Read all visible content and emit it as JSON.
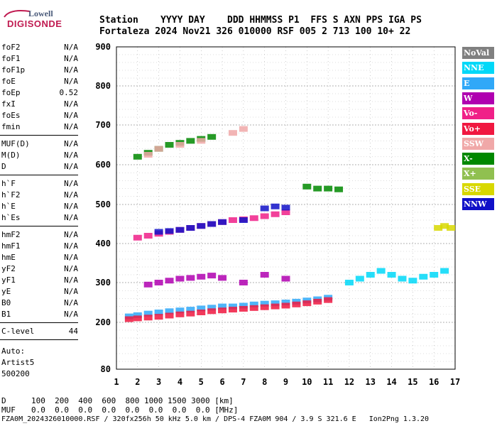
{
  "logo": {
    "line1": "Lowell",
    "line2": "DIGISONDE"
  },
  "header": {
    "row1": "Station    YYYY DAY    DDD HHMMSS P1  FFS S AXN PPS IGA PS",
    "row2": "Fortaleza 2024 Nov21 326 010000 RSF 005 2 713 100 10+ 22"
  },
  "params_group1": [
    {
      "name": "foF2",
      "value": "N/A"
    },
    {
      "name": "foF1",
      "value": "N/A"
    },
    {
      "name": "foF1p",
      "value": "N/A"
    },
    {
      "name": "foE",
      "value": "N/A"
    },
    {
      "name": "foEp",
      "value": "0.52"
    },
    {
      "name": "fxI",
      "value": "N/A"
    },
    {
      "name": "foEs",
      "value": "N/A"
    },
    {
      "name": "fmin",
      "value": "N/A"
    }
  ],
  "params_group2": [
    {
      "name": "MUF(D)",
      "value": "N/A"
    },
    {
      "name": "M(D)",
      "value": "N/A"
    },
    {
      "name": "D",
      "value": "N/A"
    }
  ],
  "params_group3": [
    {
      "name": "h`F",
      "value": "N/A"
    },
    {
      "name": "h`F2",
      "value": "N/A"
    },
    {
      "name": "h`E",
      "value": "N/A"
    },
    {
      "name": "h`Es",
      "value": "N/A"
    }
  ],
  "params_group4": [
    {
      "name": "hmF2",
      "value": "N/A"
    },
    {
      "name": "hmF1",
      "value": "N/A"
    },
    {
      "name": "hmE",
      "value": "N/A"
    },
    {
      "name": "yF2",
      "value": "N/A"
    },
    {
      "name": "yF1",
      "value": "N/A"
    },
    {
      "name": "yE",
      "value": "N/A"
    },
    {
      "name": "B0",
      "value": "N/A"
    },
    {
      "name": "B1",
      "value": "N/A"
    }
  ],
  "clevel": {
    "name": "C-level",
    "value": "44"
  },
  "auto": {
    "line1": "Auto:",
    "line2": "Artist5",
    "line3": "500200"
  },
  "legend": [
    {
      "label": "NoVal",
      "color": "#808080"
    },
    {
      "label": "NNE",
      "color": "#00d8f8"
    },
    {
      "label": "E",
      "color": "#30a8f8"
    },
    {
      "label": "W",
      "color": "#b000b0"
    },
    {
      "label": "Vo-",
      "color": "#f02088"
    },
    {
      "label": "Vo+",
      "color": "#f01840"
    },
    {
      "label": "SSW",
      "color": "#f0a8a8"
    },
    {
      "label": "X-",
      "color": "#008800"
    },
    {
      "label": "X+",
      "color": "#90c050"
    },
    {
      "label": "SSE",
      "color": "#d8d800"
    },
    {
      "label": "NNW",
      "color": "#1010c8"
    }
  ],
  "chart_data": {
    "type": "scatter",
    "xlabel": "",
    "ylabel": "",
    "xlim": [
      1,
      17
    ],
    "ylim": [
      80,
      900
    ],
    "x_ticks": [
      "1",
      "2",
      "3",
      "4",
      "5",
      "6",
      "7",
      "8",
      "9",
      "10",
      "11",
      "12",
      "13",
      "14",
      "15",
      "16",
      "17"
    ],
    "y_ticks": [
      "80",
      "200",
      "300",
      "400",
      "500",
      "600",
      "700",
      "800",
      "900"
    ],
    "y_tick_values": [
      80,
      200,
      300,
      400,
      500,
      600,
      700,
      800,
      900
    ],
    "grid": true,
    "legend_placement": "right",
    "traces": [
      {
        "name": "E",
        "color": "#30a8f8",
        "x": [
          1.6,
          2,
          2.5,
          3,
          3.5,
          4,
          4.5,
          5,
          5.5,
          6,
          6.5,
          7,
          7.5,
          8,
          8.5,
          9,
          9.5,
          10,
          10.5,
          11
        ],
        "y": [
          215,
          218,
          222,
          225,
          228,
          230,
          232,
          235,
          237,
          240,
          240,
          242,
          245,
          247,
          248,
          250,
          252,
          255,
          258,
          262
        ]
      },
      {
        "name": "Vo+",
        "color": "#f01840",
        "x": [
          1.6,
          2,
          2.5,
          3,
          3.5,
          4,
          4.5,
          5,
          5.5,
          6,
          6.5,
          7,
          7.5,
          8,
          8.5,
          9,
          9.5,
          10,
          10.5,
          11
        ],
        "y": [
          208,
          210,
          212,
          214,
          217,
          220,
          222,
          225,
          228,
          230,
          232,
          234,
          236,
          238,
          240,
          242,
          245,
          248,
          252,
          256
        ]
      },
      {
        "name": "W",
        "color": "#b000b0",
        "x": [
          2.5,
          3,
          3.5,
          4,
          4.5,
          5,
          5.5,
          6,
          7,
          8,
          9
        ],
        "y": [
          295,
          300,
          305,
          310,
          312,
          315,
          318,
          312,
          300,
          320,
          310
        ]
      },
      {
        "name": "Vo-",
        "color": "#f02088",
        "x": [
          2,
          2.5,
          3,
          3.5,
          4,
          4.5,
          5,
          5.5,
          6,
          6.5,
          7,
          7.5,
          8,
          8.5,
          9
        ],
        "y": [
          415,
          420,
          425,
          430,
          435,
          440,
          445,
          450,
          455,
          460,
          462,
          465,
          470,
          475,
          480
        ]
      },
      {
        "name": "NNW",
        "color": "#1010c8",
        "x": [
          3,
          3.5,
          4,
          4.5,
          5,
          5.5,
          6,
          7,
          8,
          8.5,
          9
        ],
        "y": [
          430,
          432,
          435,
          440,
          445,
          450,
          455,
          460,
          490,
          495,
          492
        ]
      },
      {
        "name": "X-",
        "color": "#008800",
        "x": [
          2,
          2.5,
          3,
          3.5,
          4,
          4.5,
          5,
          5.5,
          10,
          10.5,
          11,
          11.5
        ],
        "y": [
          620,
          630,
          640,
          650,
          655,
          660,
          665,
          670,
          545,
          540,
          540,
          538
        ]
      },
      {
        "name": "NNE",
        "color": "#00d8f8",
        "x": [
          12,
          12.5,
          13,
          13.5,
          14,
          14.5,
          15,
          15.5,
          16,
          16.5
        ],
        "y": [
          300,
          310,
          320,
          330,
          320,
          310,
          305,
          315,
          320,
          330
        ]
      },
      {
        "name": "SSE",
        "color": "#d8d800",
        "x": [
          16.2,
          16.5,
          16.8
        ],
        "y": [
          440,
          445,
          440
        ]
      },
      {
        "name": "SSW",
        "color": "#f0a8a8",
        "x": [
          2.5,
          3,
          4,
          5,
          6.5,
          7
        ],
        "y": [
          625,
          640,
          650,
          660,
          680,
          690
        ]
      }
    ]
  },
  "bottom": {
    "d_label": "D",
    "d_values": "100  200  400  600  800 1000 1500 3000 [km]",
    "muf_label": "MUF",
    "muf_values": "0.0  0.0  0.0  0.0  0.0  0.0  0.0  0.0 [MHz]",
    "footer": "FZA0M_2024326010000.RSF / 320fx256h 50 kHz 5.0 km / DPS-4 FZA0M 904 / 3.9 S 321.6 E   Ion2Png 1.3.20"
  }
}
